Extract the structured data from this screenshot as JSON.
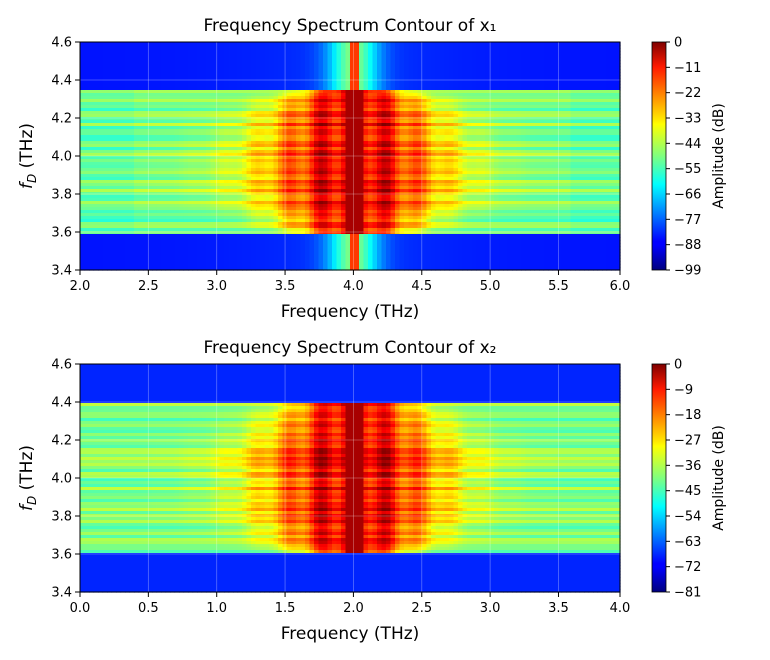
{
  "chart_data": [
    {
      "type": "heatmap",
      "title": "Frequency Spectrum Contour of x₁",
      "xlabel": "Frequency (THz)",
      "ylabel": "f",
      "ylabel_sub": "D",
      "ylabel_unit": " (THz)",
      "xlim": [
        2.0,
        5.95
      ],
      "ylim": [
        3.4,
        4.6
      ],
      "xticks": [
        "2.0",
        "2.5",
        "3.0",
        "3.5",
        "4.0",
        "4.5",
        "5.0",
        "5.5",
        "6.0"
      ],
      "xtick_values": [
        2.0,
        2.5,
        3.0,
        3.5,
        4.0,
        4.5,
        5.0,
        5.5,
        6.0
      ],
      "yticks": [
        "3.4",
        "3.6",
        "3.8",
        "4.0",
        "4.2",
        "4.4",
        "4.6"
      ],
      "ytick_values": [
        3.4,
        3.6,
        3.8,
        4.0,
        4.2,
        4.4,
        4.6
      ],
      "grid": true,
      "center_frequency": 4.0,
      "fd_band": [
        3.59,
        4.34
      ],
      "colorbar": {
        "label": "Amplitude (dB)",
        "colormap": "jet",
        "min": -99,
        "max": 0,
        "ticks": [
          "0",
          "−11",
          "−22",
          "−33",
          "−44",
          "−55",
          "−66",
          "−77",
          "−88",
          "−99"
        ],
        "tick_values": [
          0,
          -11,
          -22,
          -33,
          -44,
          -55,
          -66,
          -77,
          -88,
          -99
        ]
      }
    },
    {
      "type": "heatmap",
      "title": "Frequency Spectrum Contour of x₂",
      "xlabel": "Frequency (THz)",
      "ylabel": "f",
      "ylabel_sub": "D",
      "ylabel_unit": " (THz)",
      "xlim": [
        0.0,
        3.95
      ],
      "ylim": [
        3.4,
        4.6
      ],
      "xticks": [
        "0.0",
        "0.5",
        "1.0",
        "1.5",
        "2.0",
        "2.5",
        "3.0",
        "3.5",
        "4.0"
      ],
      "xtick_values": [
        0.0,
        0.5,
        1.0,
        1.5,
        2.0,
        2.5,
        3.0,
        3.5,
        4.0
      ],
      "yticks": [
        "3.4",
        "3.6",
        "3.8",
        "4.0",
        "4.2",
        "4.4",
        "4.6"
      ],
      "ytick_values": [
        3.4,
        3.6,
        3.8,
        4.0,
        4.2,
        4.4,
        4.6
      ],
      "grid": true,
      "center_frequency": 2.0,
      "fd_band": [
        3.6,
        4.4
      ],
      "colorbar": {
        "label": "Amplitude (dB)",
        "colormap": "jet",
        "min": -81,
        "max": 0,
        "ticks": [
          "0",
          "−9",
          "−18",
          "−27",
          "−36",
          "−45",
          "−54",
          "−63",
          "−72",
          "−81"
        ],
        "tick_values": [
          0,
          -9,
          -18,
          -27,
          -36,
          -45,
          -54,
          -63,
          -72,
          -81
        ]
      }
    }
  ]
}
